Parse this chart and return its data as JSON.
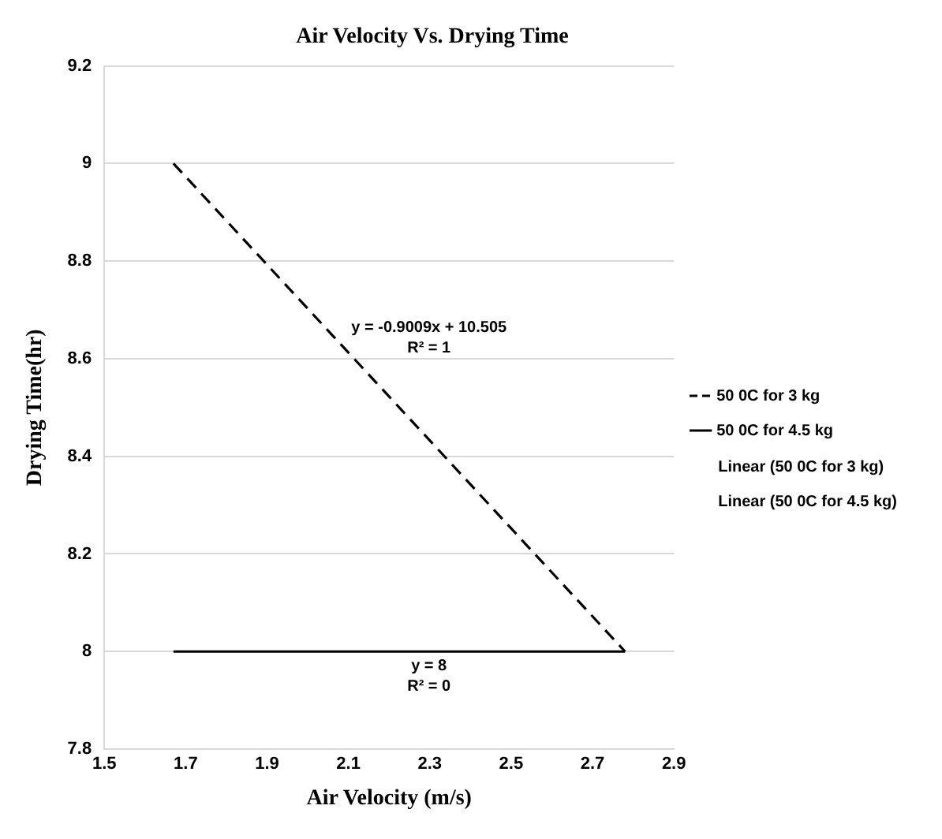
{
  "chart_data": {
    "type": "line",
    "title": "Air Velocity Vs. Drying Time",
    "xlabel": "Air Velocity (m/s)",
    "ylabel": "Drying Time(hr)",
    "xlim": [
      1.5,
      2.9
    ],
    "xticks": [
      1.5,
      1.7,
      1.9,
      2.1,
      2.3,
      2.5,
      2.7,
      2.9
    ],
    "ylim": [
      7.8,
      9.2
    ],
    "yticks": [
      7.8,
      8,
      8.2,
      8.4,
      8.6,
      8.8,
      9,
      9.2
    ],
    "grid": "y",
    "x": [
      1.67,
      2.78
    ],
    "legend": "right",
    "marker": "none",
    "series": [
      {
        "name": "50 0C for 3 kg",
        "color": "#000000",
        "line_style": "dashed",
        "values": [
          9,
          8
        ]
      },
      {
        "name": "50 0C for 4.5 kg",
        "color": "#000000",
        "line_style": "solid",
        "values": [
          8,
          8
        ]
      }
    ],
    "annotations": [
      "y = -0.9009x + 10.505\nR² = 1",
      "y = 8\nR² = 0",
      "Linear (50 0C for 3 kg)",
      "Linear (50 0C for 4.5 kg)"
    ]
  }
}
